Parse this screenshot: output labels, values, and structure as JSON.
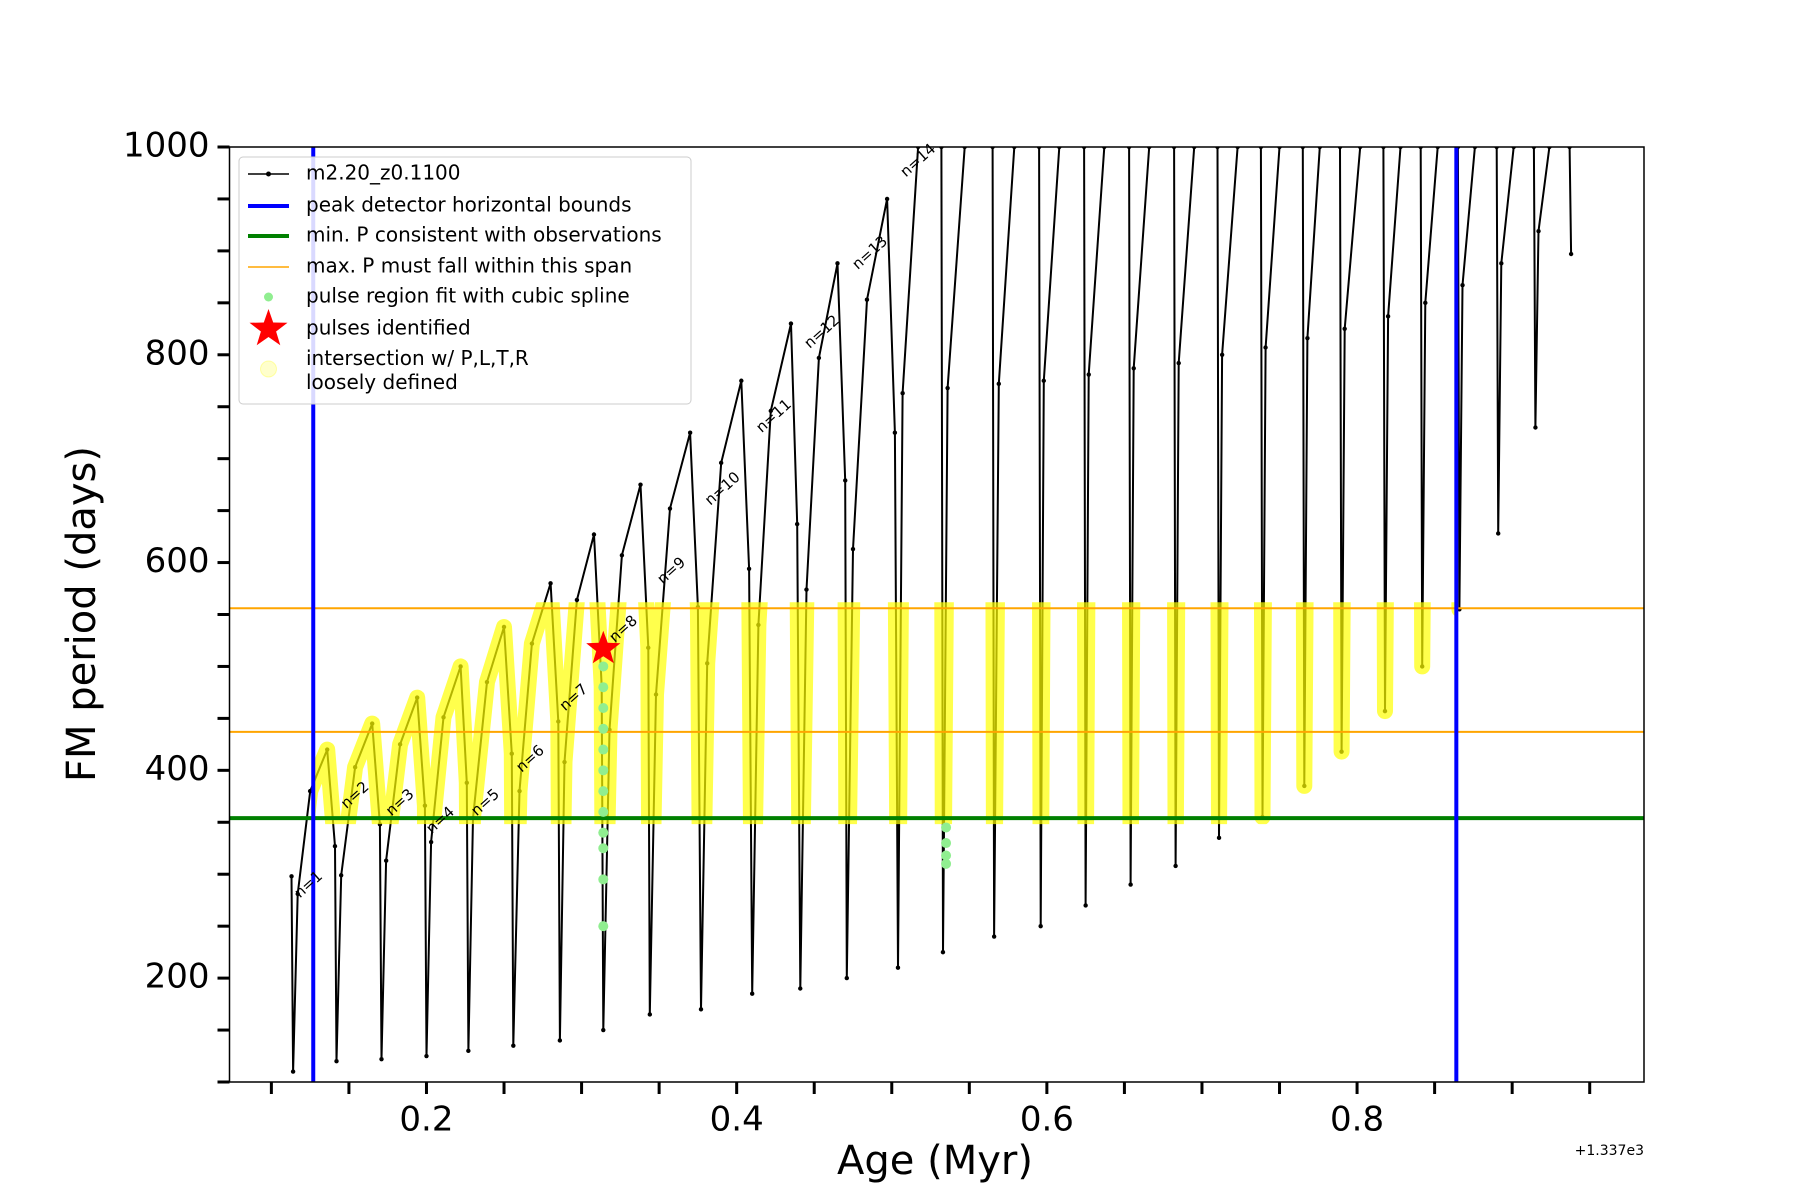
{
  "chart_data": {
    "type": "line",
    "x_label": "Age (Myr)",
    "y_label": "FM period (days)",
    "offset_text": "+1.337e3",
    "xlim": [
      0.073,
      0.985
    ],
    "ylim": [
      100,
      1000
    ],
    "xticks": [
      0.2,
      0.4,
      0.6,
      0.8
    ],
    "xticks_minor": [
      0.1,
      0.15,
      0.25,
      0.3,
      0.35,
      0.45,
      0.5,
      0.55,
      0.65,
      0.7,
      0.75,
      0.85,
      0.9,
      0.95
    ],
    "yticks": [
      200,
      400,
      600,
      800,
      1000
    ],
    "yticks_minor": [
      100,
      150,
      250,
      300,
      350,
      450,
      500,
      550,
      650,
      700,
      750,
      850,
      900,
      950
    ],
    "legend": "upper left",
    "series": [
      {
        "name": "m2.20_z0.1100",
        "color": "#000000",
        "x": [
          0.113,
          0.114,
          0.117,
          0.125,
          0.136,
          0.141,
          0.142,
          0.145,
          0.154,
          0.165,
          0.17,
          0.171,
          0.174,
          0.183,
          0.194,
          0.199,
          0.2,
          0.203,
          0.211,
          0.222,
          0.226,
          0.227,
          0.23,
          0.239,
          0.25,
          0.255,
          0.256,
          0.26,
          0.268,
          0.28,
          0.285,
          0.286,
          0.289,
          0.297,
          0.308,
          0.313,
          0.314,
          0.318,
          0.326,
          0.338,
          0.343,
          0.344,
          0.348,
          0.357,
          0.37,
          0.375,
          0.377,
          0.381,
          0.39,
          0.403,
          0.408,
          0.41,
          0.414,
          0.422,
          0.435,
          0.439,
          0.441,
          0.445,
          0.453,
          0.465,
          0.47,
          0.471,
          0.475,
          0.484,
          0.497,
          0.502,
          0.504,
          0.507,
          0.517,
          null,
          0.532,
          0.533,
          0.536,
          0.547,
          null,
          0.565,
          0.566,
          0.569,
          0.579,
          null,
          0.595,
          0.596,
          0.598,
          0.608,
          null,
          0.624,
          0.625,
          0.627,
          0.637,
          null,
          0.653,
          0.654,
          0.656,
          0.666,
          null,
          0.682,
          0.683,
          0.685,
          0.695,
          null,
          0.71,
          0.711,
          0.713,
          0.723,
          null,
          0.738,
          0.739,
          0.741,
          0.75,
          null,
          0.765,
          0.766,
          0.768,
          0.776,
          null,
          0.789,
          0.79,
          0.792,
          0.802,
          null,
          0.817,
          0.818,
          0.82,
          0.828,
          null,
          0.841,
          0.842,
          0.844,
          0.852,
          null,
          0.865,
          0.866,
          0.868,
          0.876,
          null,
          0.89,
          0.891,
          0.893,
          0.901,
          null,
          0.914,
          0.915,
          0.917,
          0.924,
          null,
          0.937,
          0.938
        ],
        "values": [
          298,
          110,
          281,
          380,
          420,
          327,
          120,
          299,
          403,
          445,
          348,
          122,
          313,
          425,
          470,
          366,
          125,
          331,
          451,
          500,
          388,
          130,
          354,
          485,
          538,
          416,
          135,
          380,
          522,
          580,
          447,
          140,
          408,
          564,
          627,
          481,
          150,
          439,
          607,
          675,
          518,
          165,
          473,
          652,
          725,
          557,
          170,
          503,
          696,
          775,
          594,
          185,
          540,
          746,
          830,
          637,
          190,
          574,
          797,
          888,
          679,
          200,
          613,
          853,
          950,
          725,
          210,
          763,
          1000,
          null,
          1000,
          225,
          768,
          1000,
          null,
          1000,
          240,
          772,
          1000,
          null,
          1000,
          250,
          775,
          1000,
          null,
          1000,
          270,
          781,
          1000,
          null,
          1000,
          290,
          787,
          1000,
          null,
          1000,
          308,
          792,
          1000,
          null,
          1000,
          335,
          800,
          1000,
          null,
          1000,
          355,
          807,
          1000,
          null,
          1000,
          385,
          816,
          1000,
          null,
          1000,
          418,
          825,
          1000,
          null,
          1000,
          457,
          837,
          1000,
          null,
          1000,
          500,
          850,
          1000,
          null,
          1000,
          555,
          867,
          1000,
          null,
          1000,
          628,
          888,
          1000,
          null,
          1000,
          730,
          919,
          1000,
          null,
          1000,
          897
        ]
      }
    ],
    "bounds": {
      "name": "peak detector horizontal bounds",
      "color": "#0000ff",
      "values": [
        0.127,
        0.864
      ]
    },
    "min_period": {
      "name": "min. P consistent with observations",
      "color": "#008000",
      "values": [
        354
      ]
    },
    "max_period_span": {
      "name": "max. P must fall within this span",
      "color": "#ffa500",
      "values": [
        437,
        556
      ]
    },
    "pulse_region": {
      "name": "pulse region fit with cubic spline",
      "color": "#90ee90",
      "x": [
        0.314,
        0.314,
        0.314,
        0.314,
        0.314,
        0.314,
        0.314,
        0.314,
        0.314,
        0.314,
        0.314,
        0.314,
        0.535,
        0.535,
        0.535,
        0.535
      ],
      "values": [
        250,
        295,
        325,
        340,
        360,
        380,
        400,
        420,
        440,
        460,
        480,
        500,
        310,
        318,
        330,
        345
      ]
    },
    "pulses": {
      "name": "pulses identified",
      "color": "#ff0000",
      "x": [
        0.314
      ],
      "values": [
        517
      ]
    },
    "intersection": {
      "name": "intersection w/ P,L,T,R\nloosely defined",
      "color": "#ffff00"
    },
    "annotations": [
      {
        "text": "n=1",
        "x": 0.124,
        "y": 290
      },
      {
        "text": "n=2",
        "x": 0.154,
        "y": 376
      },
      {
        "text": "n=3",
        "x": 0.183,
        "y": 369
      },
      {
        "text": "n=4",
        "x": 0.209,
        "y": 352
      },
      {
        "text": "n=5",
        "x": 0.238,
        "y": 369
      },
      {
        "text": "n=6",
        "x": 0.267,
        "y": 411
      },
      {
        "text": "n=7",
        "x": 0.295,
        "y": 470
      },
      {
        "text": "n=8",
        "x": 0.327,
        "y": 536
      },
      {
        "text": "n=9",
        "x": 0.358,
        "y": 592
      },
      {
        "text": "n=10",
        "x": 0.391,
        "y": 671
      },
      {
        "text": "n=11",
        "x": 0.424,
        "y": 741
      },
      {
        "text": "n=12",
        "x": 0.455,
        "y": 822
      },
      {
        "text": "n=13",
        "x": 0.486,
        "y": 898
      },
      {
        "text": "n=14",
        "x": 0.517,
        "y": 987
      }
    ]
  }
}
